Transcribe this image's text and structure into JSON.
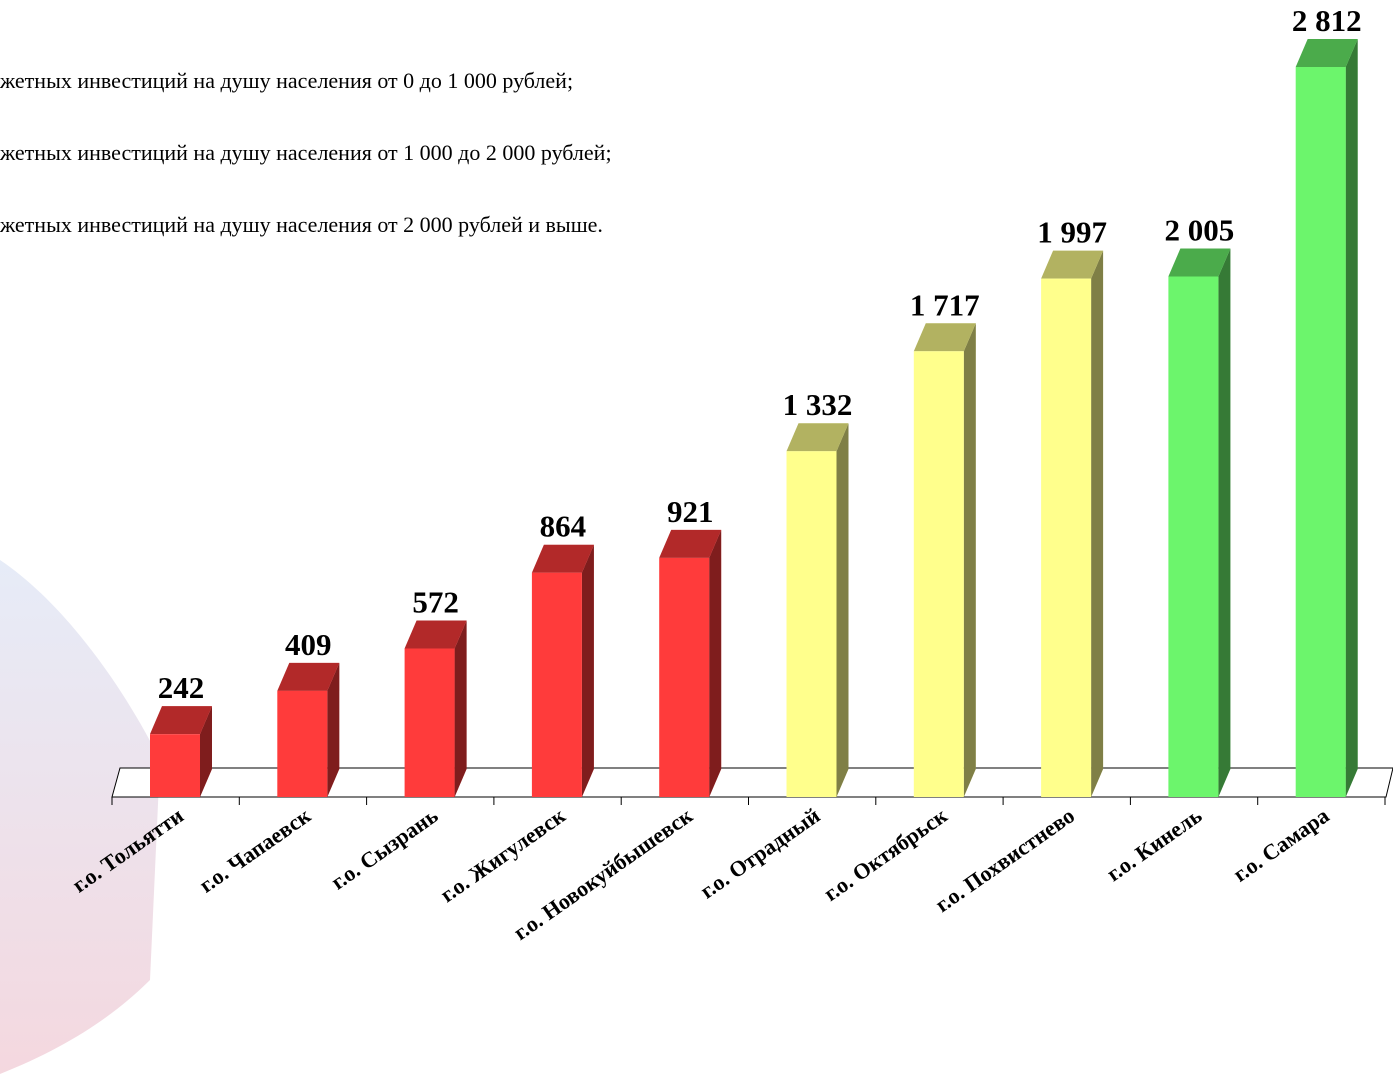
{
  "chart_data": {
    "type": "bar3d",
    "legend_texts": [
      "жетных инвестиций на душу населения от 0 до 1 000 рублей;",
      "жетных инвестиций на душу населения от 1 000 до 2 000 рублей;",
      "жетных инвестиций на душу населения от 2 000 рублей и выше."
    ],
    "categories": [
      "г.о. Тольятти",
      "г.о. Чапаевск",
      "г.о. Сызрань",
      "г.о. Жигулевск",
      "г.о. Новокуйбышевск",
      "г.о. Отрадный",
      "г.о. Октябрьск",
      "г.о. Похвистнево",
      "г.о. Кинель",
      "г.о. Самара"
    ],
    "values": [
      242,
      409,
      572,
      864,
      921,
      1332,
      1717,
      1997,
      2005,
      2812
    ],
    "value_labels": [
      "242",
      "409",
      "572",
      "864",
      "921",
      "1 332",
      "1 717",
      "1 997",
      "2 005",
      "2 812"
    ],
    "colors": [
      "#ff3b3b",
      "#ff3b3b",
      "#ff3b3b",
      "#ff3b3b",
      "#ff3b3b",
      "#ffff8c",
      "#ffff8c",
      "#ffff8c",
      "#6cf56c",
      "#6cf56c"
    ]
  }
}
